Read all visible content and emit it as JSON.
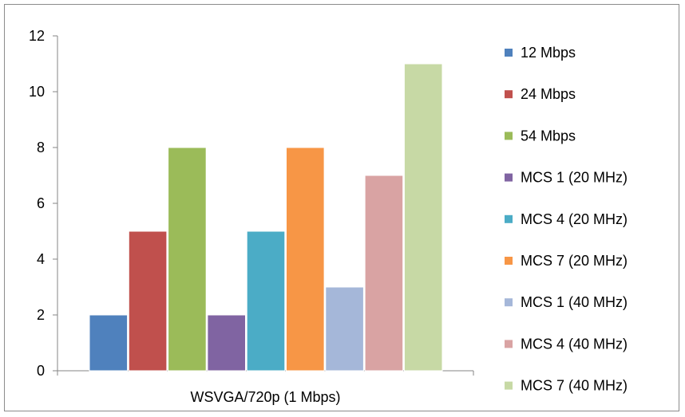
{
  "chart_data": {
    "type": "bar",
    "categories": [
      "WSVGA/720p (1 Mbps)"
    ],
    "series": [
      {
        "name": "12 Mbps",
        "values": [
          2
        ],
        "color": "#4f81bd"
      },
      {
        "name": "24 Mbps",
        "values": [
          5
        ],
        "color": "#c0504d"
      },
      {
        "name": "54 Mbps",
        "values": [
          8
        ],
        "color": "#9bbb59"
      },
      {
        "name": "MCS 1 (20 MHz)",
        "values": [
          2
        ],
        "color": "#8064a2"
      },
      {
        "name": "MCS 4 (20 MHz)",
        "values": [
          5
        ],
        "color": "#4bacc6"
      },
      {
        "name": "MCS 7 (20 MHz)",
        "values": [
          8
        ],
        "color": "#f79646"
      },
      {
        "name": "MCS 1 (40 MHz)",
        "values": [
          3
        ],
        "color": "#a5b7d9"
      },
      {
        "name": "MCS 4 (40 MHz)",
        "values": [
          7
        ],
        "color": "#d9a3a3"
      },
      {
        "name": "MCS 7 (40 MHz)",
        "values": [
          11
        ],
        "color": "#c7d9a5"
      }
    ],
    "yticks": [
      "0",
      "2",
      "4",
      "6",
      "8",
      "10",
      "12"
    ],
    "ylim": [
      0,
      12
    ],
    "grid": false,
    "legend": "right"
  }
}
